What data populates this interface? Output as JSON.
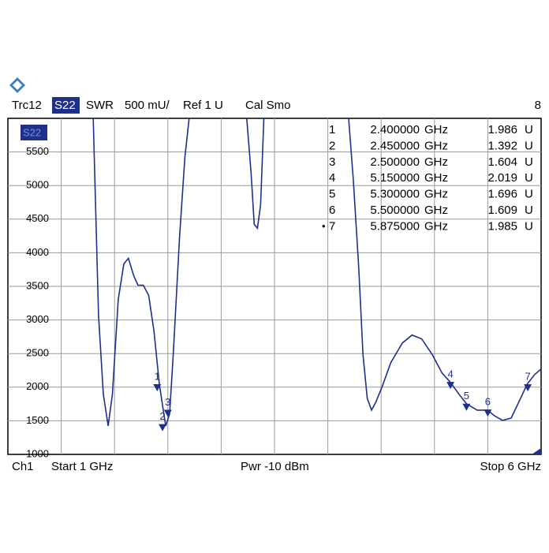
{
  "header": {
    "trace": "Trc12",
    "param": "S22",
    "format": "SWR",
    "scale": "500 mU/",
    "ref": "Ref 1 U",
    "cal": "Cal Smo",
    "channel_count": "8"
  },
  "footer": {
    "channel": "Ch1",
    "start": "Start  1 GHz",
    "power": "Pwr  -10 dBm",
    "stop": "Stop  6 GHz"
  },
  "marker_table": {
    "active_bullet": "•",
    "rows": [
      {
        "marker": "1",
        "freq": "2.400000",
        "freq_unit": "GHz",
        "value": "1.986",
        "value_unit": "U"
      },
      {
        "marker": "2",
        "freq": "2.450000",
        "freq_unit": "GHz",
        "value": "1.392",
        "value_unit": "U"
      },
      {
        "marker": "3",
        "freq": "2.500000",
        "freq_unit": "GHz",
        "value": "1.604",
        "value_unit": "U"
      },
      {
        "marker": "4",
        "freq": "5.150000",
        "freq_unit": "GHz",
        "value": "2.019",
        "value_unit": "U"
      },
      {
        "marker": "5",
        "freq": "5.300000",
        "freq_unit": "GHz",
        "value": "1.696",
        "value_unit": "U"
      },
      {
        "marker": "6",
        "freq": "5.500000",
        "freq_unit": "GHz",
        "value": "1.609",
        "value_unit": "U"
      },
      {
        "marker": "7",
        "freq": "5.875000",
        "freq_unit": "GHz",
        "value": "1.985",
        "value_unit": "U"
      }
    ]
  },
  "chart_data": {
    "type": "line",
    "trace_label": "S22",
    "x": [
      1.8,
      1.85,
      1.895,
      1.94,
      1.98,
      2.035,
      2.087,
      2.13,
      2.18,
      2.22,
      2.27,
      2.32,
      2.37,
      2.42,
      2.457,
      2.48,
      2.516,
      2.55,
      2.61,
      2.66,
      2.7,
      3.0,
      3.24,
      3.28,
      3.31,
      3.34,
      3.37,
      3.4,
      3.8,
      4.195,
      4.24,
      4.29,
      4.33,
      4.37,
      4.41,
      4.45,
      4.51,
      4.59,
      4.7,
      4.79,
      4.88,
      4.98,
      5.07,
      5.15,
      5.23,
      5.3,
      5.4,
      5.5,
      5.56,
      5.64,
      5.72,
      5.79,
      5.87,
      5.94,
      6.0
    ],
    "series": [
      {
        "name": "S22",
        "color": "#1f2f8c",
        "values": [
          6000,
          3071,
          1894,
          1424,
          1894,
          3306,
          3835,
          3918,
          3659,
          3518,
          3518,
          3365,
          2835,
          2047,
          1659,
          1424,
          1600,
          2482,
          4247,
          5424,
          6000,
          null,
          6000,
          5188,
          4424,
          4365,
          4718,
          6000,
          null,
          6000,
          5071,
          3776,
          2482,
          1835,
          1659,
          1776,
          2012,
          2365,
          2659,
          2776,
          2718,
          2482,
          2212,
          2071,
          1894,
          1753,
          1659,
          1659,
          1576,
          1506,
          1541,
          1776,
          2047,
          2188,
          2271
        ]
      }
    ],
    "markers": {
      "labels": [
        "1",
        "2",
        "3",
        "4",
        "5",
        "6",
        "7"
      ],
      "x": [
        2.4,
        2.45,
        2.5,
        5.15,
        5.3,
        5.5,
        5.875
      ],
      "values": [
        1986,
        1392,
        1604,
        2019,
        1696,
        1609,
        1985
      ],
      "color": "#1f2f8c"
    },
    "xlim": [
      1,
      6
    ],
    "ylim": [
      1000,
      6000
    ],
    "yticks": [
      1000,
      1500,
      2000,
      2500,
      3000,
      3500,
      4000,
      4500,
      5000,
      5500
    ],
    "grid": true
  }
}
